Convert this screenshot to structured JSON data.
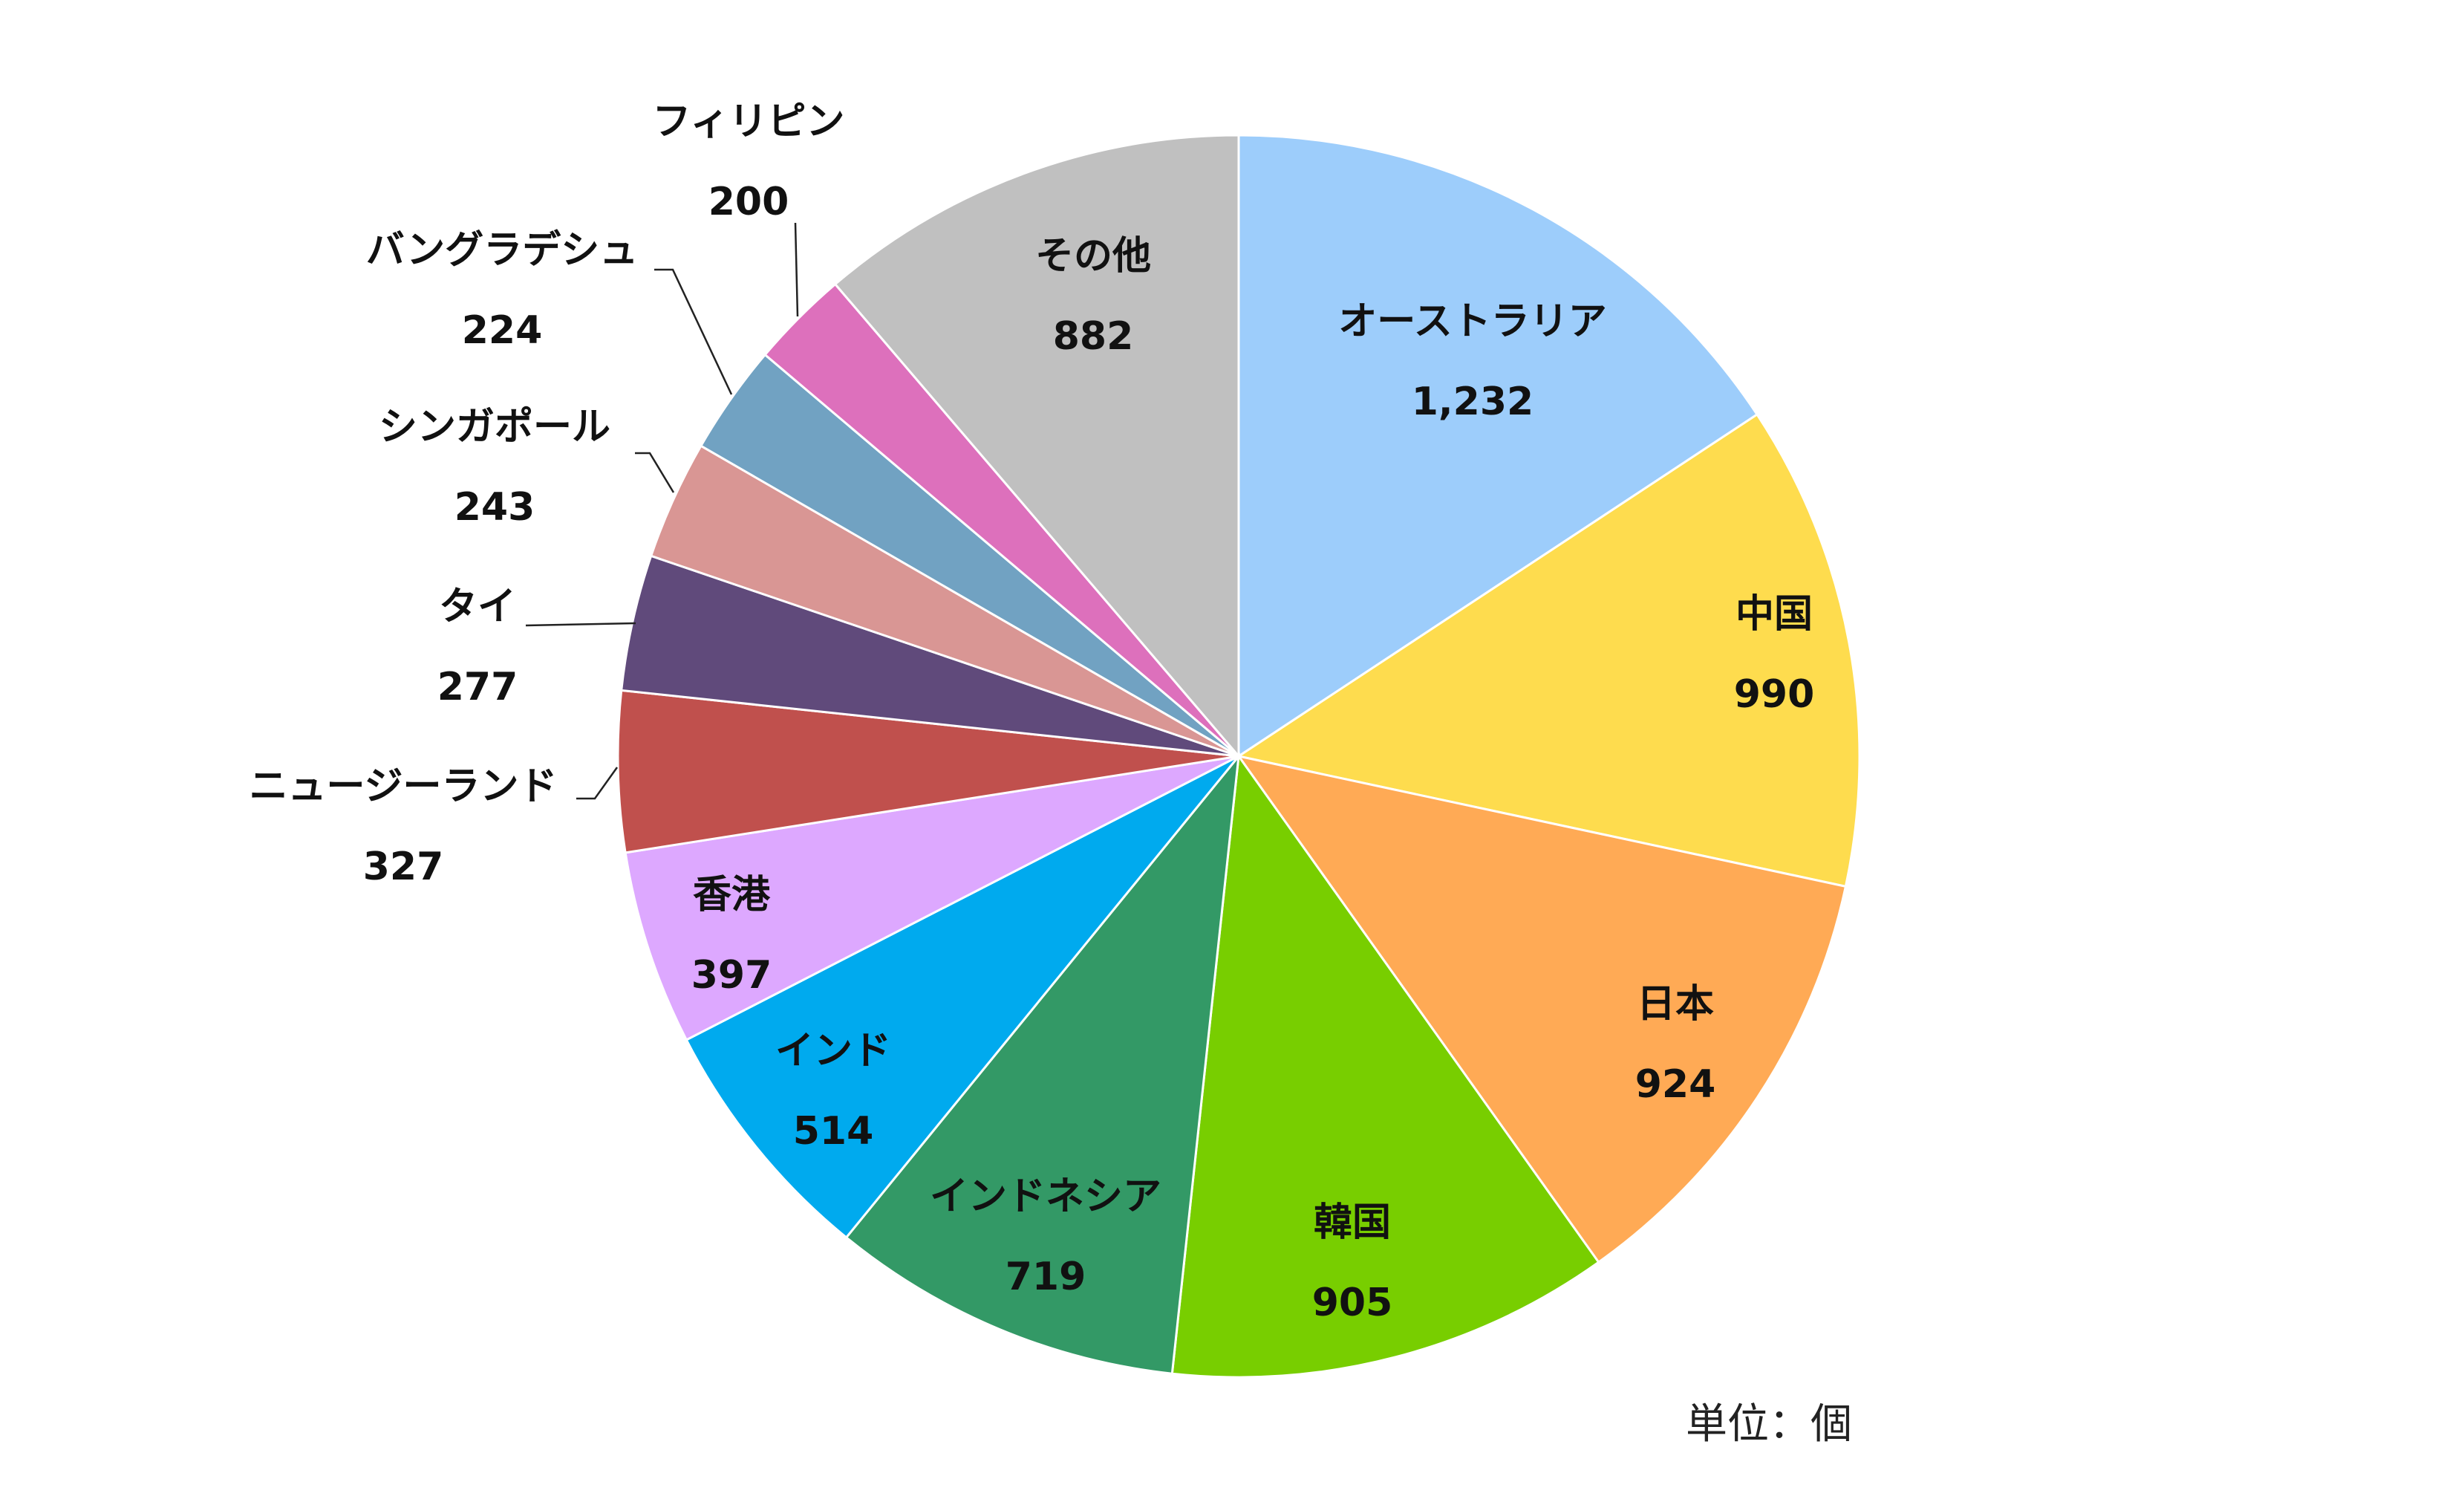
{
  "chart_data": {
    "type": "pie",
    "unit_label": "単位：個",
    "slices": [
      {
        "label": "オーストラリア",
        "value": 1232,
        "value_label": "1,232",
        "color": "#9DCDFB"
      },
      {
        "label": "中国",
        "value": 990,
        "value_label": "990",
        "color": "#FEDC4E"
      },
      {
        "label": "日本",
        "value": 924,
        "value_label": "924",
        "color": "#FFAA55"
      },
      {
        "label": "韓国",
        "value": 905,
        "value_label": "905",
        "color": "#78CE00"
      },
      {
        "label": "インドネシア",
        "value": 719,
        "value_label": "719",
        "color": "#339966"
      },
      {
        "label": "インド",
        "value": 514,
        "value_label": "514",
        "color": "#00AAEE"
      },
      {
        "label": "香港",
        "value": 397,
        "value_label": "397",
        "color": "#DDA8FF"
      },
      {
        "label": "ニュージーランド",
        "value": 327,
        "value_label": "327",
        "color": "#C0504D"
      },
      {
        "label": "タイ",
        "value": 277,
        "value_label": "277",
        "color": "#604A7B"
      },
      {
        "label": "シンガポール",
        "value": 243,
        "value_label": "243",
        "color": "#D99694"
      },
      {
        "label": "バングラデシュ",
        "value": 224,
        "value_label": "224",
        "color": "#71A2C2"
      },
      {
        "label": "フィリピン",
        "value": 200,
        "value_label": "200",
        "color": "#DD70BC"
      },
      {
        "label": "その他",
        "value": 882,
        "value_label": "882",
        "color": "#C0C0C0"
      }
    ]
  }
}
